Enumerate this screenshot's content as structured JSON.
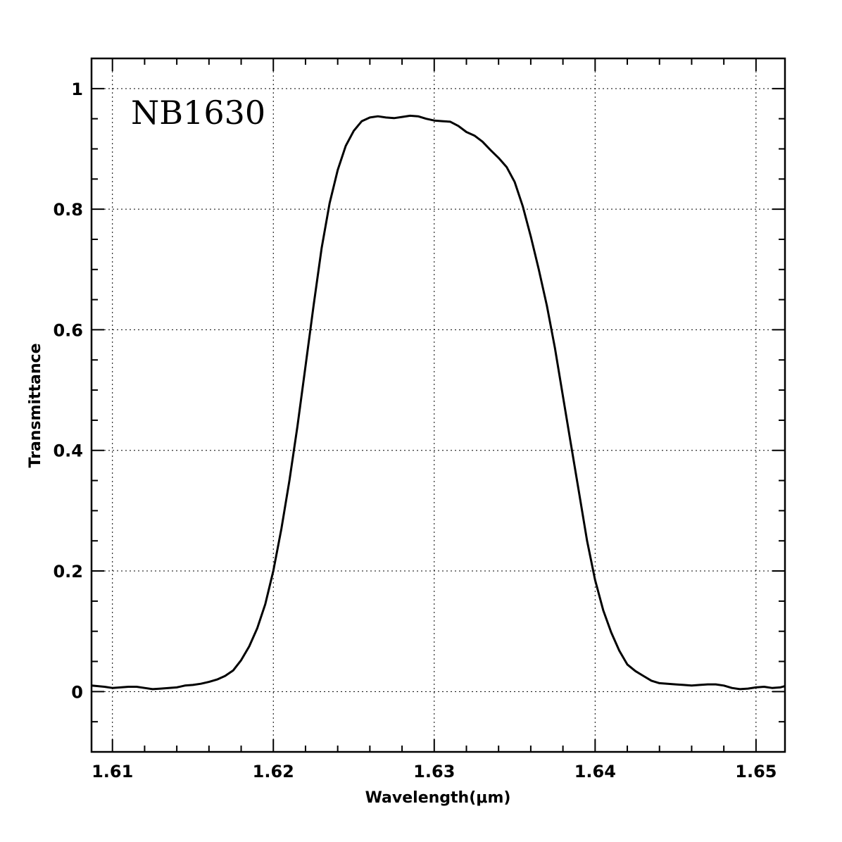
{
  "chart_data": {
    "type": "line",
    "annotation": "NB1630",
    "xlabel": "Wavelength(μm)",
    "ylabel": "Transmittance",
    "xlim": [
      1.6087,
      1.6518
    ],
    "ylim": [
      -0.1,
      1.05
    ],
    "grid": true,
    "x_ticks": [
      1.61,
      1.62,
      1.63,
      1.64,
      1.65
    ],
    "x_tick_labels": [
      "1.61",
      "1.62",
      "1.63",
      "1.64",
      "1.65"
    ],
    "y_ticks": [
      0,
      0.2,
      0.4,
      0.6,
      0.8,
      1
    ],
    "y_tick_labels": [
      "0",
      "0.2",
      "0.4",
      "0.6",
      "0.8",
      "1"
    ],
    "series": [
      {
        "x": [
          1.6087,
          1.6095,
          1.61,
          1.6105,
          1.611,
          1.6115,
          1.612,
          1.6125,
          1.613,
          1.6135,
          1.614,
          1.6145,
          1.615,
          1.6155,
          1.616,
          1.6165,
          1.617,
          1.6175,
          1.618,
          1.6185,
          1.619,
          1.6195,
          1.62,
          1.6205,
          1.621,
          1.6215,
          1.622,
          1.6225,
          1.623,
          1.6235,
          1.624,
          1.6245,
          1.625,
          1.6255,
          1.626,
          1.6265,
          1.627,
          1.6275,
          1.628,
          1.6285,
          1.629,
          1.6295,
          1.63,
          1.6305,
          1.631,
          1.6315,
          1.632,
          1.6325,
          1.633,
          1.6335,
          1.634,
          1.6345,
          1.635,
          1.6355,
          1.636,
          1.6365,
          1.637,
          1.6375,
          1.638,
          1.6385,
          1.639,
          1.6395,
          1.64,
          1.6405,
          1.641,
          1.6415,
          1.642,
          1.6425,
          1.643,
          1.6435,
          1.644,
          1.6445,
          1.645,
          1.6455,
          1.646,
          1.6465,
          1.647,
          1.6475,
          1.648,
          1.6485,
          1.649,
          1.6495,
          1.65,
          1.6505,
          1.651,
          1.6515,
          1.6518
        ],
        "y": [
          0.01,
          0.008,
          0.006,
          0.007,
          0.008,
          0.008,
          0.006,
          0.004,
          0.005,
          0.006,
          0.007,
          0.01,
          0.011,
          0.013,
          0.016,
          0.02,
          0.026,
          0.035,
          0.052,
          0.075,
          0.105,
          0.145,
          0.2,
          0.27,
          0.35,
          0.44,
          0.54,
          0.64,
          0.735,
          0.81,
          0.865,
          0.905,
          0.93,
          0.946,
          0.952,
          0.954,
          0.952,
          0.951,
          0.953,
          0.955,
          0.954,
          0.95,
          0.947,
          0.946,
          0.945,
          0.938,
          0.928,
          0.922,
          0.912,
          0.898,
          0.885,
          0.87,
          0.845,
          0.805,
          0.755,
          0.7,
          0.64,
          0.57,
          0.49,
          0.41,
          0.33,
          0.25,
          0.185,
          0.135,
          0.098,
          0.068,
          0.045,
          0.034,
          0.026,
          0.018,
          0.014,
          0.013,
          0.012,
          0.011,
          0.01,
          0.011,
          0.012,
          0.012,
          0.01,
          0.006,
          0.004,
          0.005,
          0.007,
          0.008,
          0.006,
          0.007,
          0.009
        ]
      }
    ]
  }
}
